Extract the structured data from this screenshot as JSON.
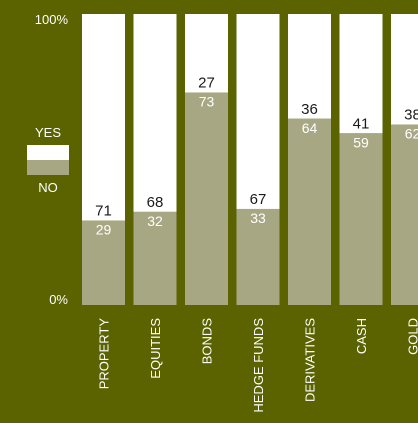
{
  "chart_data": {
    "type": "bar",
    "stacked": true,
    "ylim": [
      0,
      100
    ],
    "y_tick_labels": [
      "0%",
      "100%"
    ],
    "categories": [
      "PROPERTY",
      "EQUITIES",
      "BONDS",
      "HEDGE FUNDS",
      "DERIVATIVES",
      "CASH",
      "GOLD"
    ],
    "series": [
      {
        "name": "NO",
        "values": [
          29,
          32,
          73,
          33,
          64,
          59,
          62
        ],
        "color": "#a7a883"
      },
      {
        "name": "YES",
        "values": [
          71,
          68,
          27,
          67,
          36,
          41,
          38
        ],
        "color": "#ffffff"
      }
    ],
    "legend": {
      "placement": "left",
      "items": [
        "YES",
        "NO"
      ]
    },
    "colors": {
      "background": "#5a6300",
      "text_light": "#ffffff",
      "text_dark": "#1a1a1a"
    }
  }
}
